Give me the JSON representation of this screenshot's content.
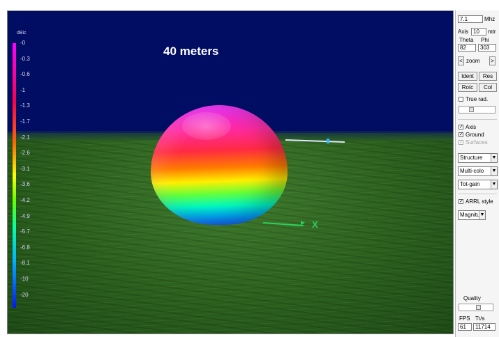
{
  "plot": {
    "caption": "40 meters",
    "scale_title": "dBic",
    "scale_labels": [
      "-0",
      "-0.3",
      "-0.6",
      "-1",
      "-1.3",
      "-1.7",
      "-2.1",
      "-2.6",
      "-3.1",
      "-3.6",
      "-4.2",
      "-4.9",
      "-5.7",
      "-6.8",
      "-8.1",
      "-10",
      "-20"
    ],
    "x_axis_label": "X"
  },
  "panel": {
    "freq_value": "7.1",
    "freq_unit": "Mhz",
    "axis_label": "Axis",
    "axis_value": "10",
    "axis_unit": "mtr",
    "theta_label": "Theta",
    "phi_label": "Phi",
    "theta_value": "82",
    "phi_value": "303",
    "zoom_left": "<",
    "zoom_label": "zoom",
    "zoom_right": ">",
    "ident_label": "Ident",
    "res_label": "Res",
    "rotc_label": "Rotc",
    "col_label": "Col",
    "true_rad_label": "True rad.",
    "axis_check_label": "Axis",
    "ground_check_label": "Ground",
    "surfaces_check_label": "Surfaces",
    "structure_select": "Structure",
    "color_select": "Multi-colo",
    "gain_select": "Tot-gain",
    "arrl_label": "ARRL style",
    "magnitude_select": "Magnitu",
    "quality_label": "Quality",
    "fps_label": "FPS",
    "tris_label": "Tr/s",
    "fps_value": "61",
    "tris_value": "11714"
  },
  "colors": {
    "sky": "#000d63",
    "ground": "#2a5f1d",
    "x_axis": "#2bd25c"
  }
}
